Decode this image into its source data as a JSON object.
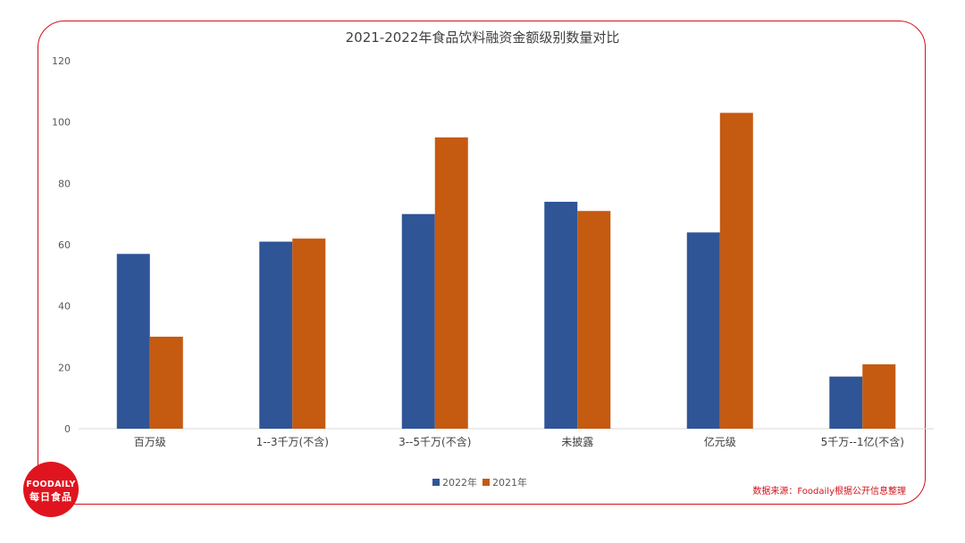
{
  "logo": {
    "line1": "FOODAILY",
    "line2": "每日食品"
  },
  "source": "数据来源：Foodaily根据公开信息整理",
  "chart_data": {
    "type": "bar",
    "title": "2021-2022年食品饮料融资金额级别数量对比",
    "categories": [
      "百万级",
      "1--3千万(不含)",
      "3--5千万(不含)",
      "未披露",
      "亿元级",
      "5千万--1亿(不含)"
    ],
    "series": [
      {
        "name": "2022年",
        "color": "#2f5597",
        "values": [
          57,
          61,
          70,
          74,
          64,
          17
        ]
      },
      {
        "name": "2021年",
        "color": "#c55a11",
        "values": [
          30,
          62,
          95,
          71,
          103,
          21
        ]
      }
    ],
    "ylim": [
      0,
      120
    ],
    "yticks": [
      0,
      20,
      40,
      60,
      80,
      100,
      120
    ],
    "grid": false,
    "legend": "bottom"
  }
}
